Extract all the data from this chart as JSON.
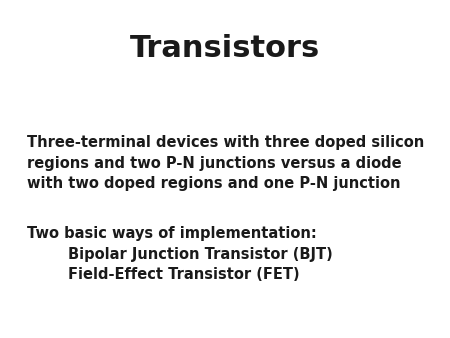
{
  "title": "Transistors",
  "title_fontsize": 22,
  "title_fontweight": "bold",
  "background_color": "#ffffff",
  "text_color": "#1a1a1a",
  "body_fontsize": 10.5,
  "body_fontweight": "bold",
  "line1": "Three-terminal devices with three doped silicon",
  "line2": "regions and two P-N junctions versus a diode",
  "line3": "with two doped regions and one P-N junction",
  "line4": "Two basic ways of implementation:",
  "line5": "        Bipolar Junction Transistor (BJT)",
  "line6": "        Field-Effect Transistor (FET)"
}
